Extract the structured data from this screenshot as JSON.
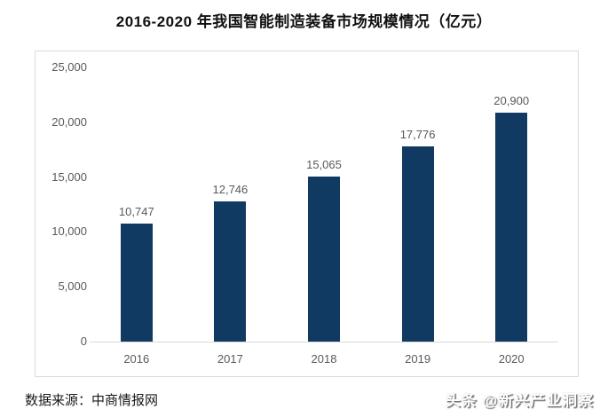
{
  "title": "2016-2020 年我国智能制造装备市场规模情况（亿元）",
  "source_note": "数据来源：中商情报网",
  "watermark": "头条 @新兴产业洞察",
  "colors": {
    "bar": "#103a62",
    "axis_label": "#595959",
    "frame_border": "#d9d9d9",
    "title_text": "#111111",
    "watermark_text": "#ffffff"
  },
  "chart_data": {
    "type": "bar",
    "title": "2016-2020 年我国智能制造装备市场规模情况（亿元）",
    "categories": [
      "2016",
      "2017",
      "2018",
      "2019",
      "2020"
    ],
    "values": [
      10747,
      12746,
      15065,
      17776,
      20900
    ],
    "value_labels": [
      "10,747",
      "12,746",
      "15,065",
      "17,776",
      "20,900"
    ],
    "xlabel": "",
    "ylabel": "",
    "ylim": [
      0,
      25000
    ],
    "ytick_interval": 5000,
    "ytick_labels": [
      "25,000",
      "20,000",
      "15,000",
      "10,000",
      "5,000",
      "0"
    ],
    "grid": false,
    "legend": null,
    "unit": "亿元"
  }
}
